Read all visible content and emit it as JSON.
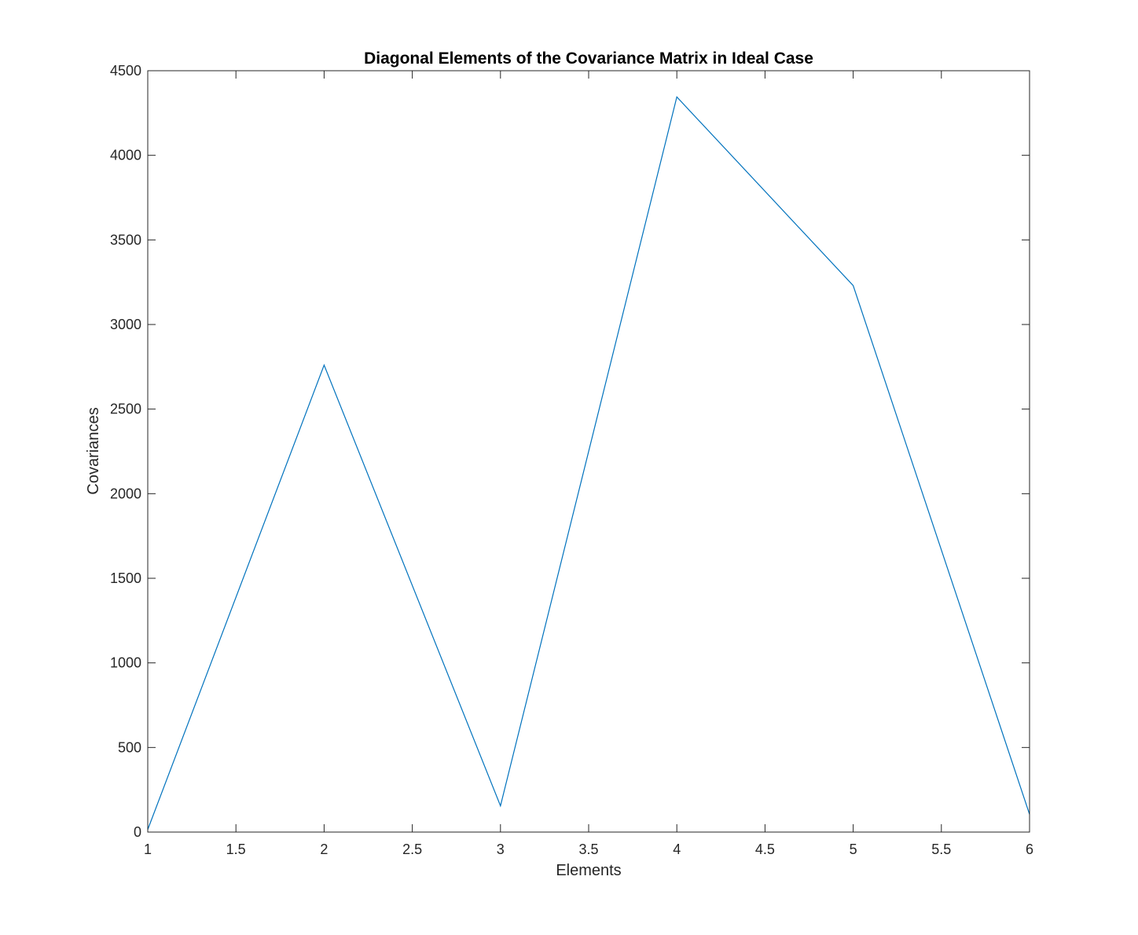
{
  "chart_data": {
    "type": "line",
    "title": "Diagonal Elements of the Covariance Matrix in Ideal Case",
    "xlabel": "Elements",
    "ylabel": "Covariances",
    "xlim": [
      1,
      6
    ],
    "ylim": [
      0,
      4500
    ],
    "xticks": [
      1,
      1.5,
      2,
      2.5,
      3,
      3.5,
      4,
      4.5,
      5,
      5.5,
      6
    ],
    "yticks": [
      0,
      500,
      1000,
      1500,
      2000,
      2500,
      3000,
      3500,
      4000,
      4500
    ],
    "grid": false,
    "legend": "none",
    "series": [
      {
        "color": "#0072BD",
        "x": [
          1,
          2,
          3,
          4,
          5,
          6
        ],
        "y": [
          15,
          2760,
          155,
          4345,
          3230,
          105
        ]
      }
    ]
  }
}
